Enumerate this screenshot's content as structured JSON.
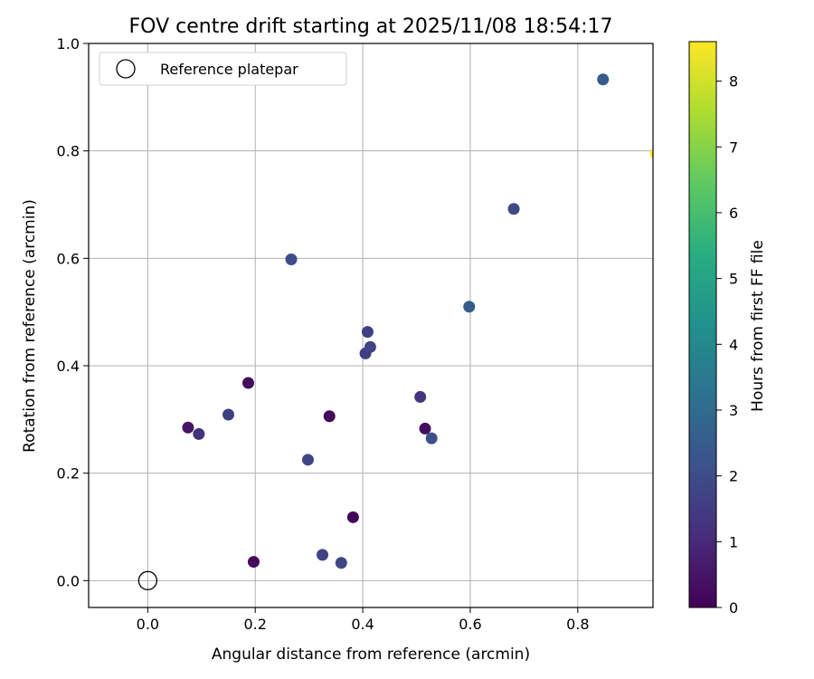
{
  "chart_data": {
    "type": "scatter",
    "title": "FOV centre drift starting at 2025/11/08 18:54:17",
    "xlabel": "Angular distance from reference (arcmin)",
    "ylabel": "Rotation from reference (arcmin)",
    "xlim": [
      -0.11,
      0.94
    ],
    "ylim": [
      -0.05,
      1.0
    ],
    "xticks": [
      0.0,
      0.2,
      0.4,
      0.6,
      0.8
    ],
    "xtick_labels": [
      "0.0",
      "0.2",
      "0.4",
      "0.6",
      "0.8"
    ],
    "yticks": [
      0.0,
      0.2,
      0.4,
      0.6,
      0.8,
      1.0
    ],
    "ytick_labels": [
      "0.0",
      "0.2",
      "0.4",
      "0.6",
      "0.8",
      "1.0"
    ],
    "grid": true,
    "legend": {
      "label": "Reference platepar",
      "location": "upper-left"
    },
    "reference_point": {
      "x": 0.0,
      "y": 0.0
    },
    "points": [
      {
        "x": 0.075,
        "y": 0.285,
        "hours": 0.5
      },
      {
        "x": 0.095,
        "y": 0.273,
        "hours": 1.2
      },
      {
        "x": 0.15,
        "y": 0.309,
        "hours": 1.6
      },
      {
        "x": 0.187,
        "y": 0.368,
        "hours": 0.3
      },
      {
        "x": 0.197,
        "y": 0.035,
        "hours": 0.2
      },
      {
        "x": 0.267,
        "y": 0.598,
        "hours": 2.0
      },
      {
        "x": 0.298,
        "y": 0.225,
        "hours": 1.8
      },
      {
        "x": 0.325,
        "y": 0.048,
        "hours": 1.7
      },
      {
        "x": 0.338,
        "y": 0.306,
        "hours": 0.2
      },
      {
        "x": 0.36,
        "y": 0.033,
        "hours": 1.8
      },
      {
        "x": 0.382,
        "y": 0.118,
        "hours": 0.1
      },
      {
        "x": 0.405,
        "y": 0.423,
        "hours": 1.6
      },
      {
        "x": 0.409,
        "y": 0.463,
        "hours": 1.6
      },
      {
        "x": 0.414,
        "y": 0.435,
        "hours": 1.7
      },
      {
        "x": 0.507,
        "y": 0.342,
        "hours": 1.3
      },
      {
        "x": 0.516,
        "y": 0.283,
        "hours": 0.3
      },
      {
        "x": 0.528,
        "y": 0.265,
        "hours": 2.1
      },
      {
        "x": 0.598,
        "y": 0.51,
        "hours": 2.5
      },
      {
        "x": 0.681,
        "y": 0.692,
        "hours": 1.9
      },
      {
        "x": 0.847,
        "y": 0.933,
        "hours": 2.5
      },
      {
        "x": 0.945,
        "y": 0.795,
        "hours": 8.6
      }
    ],
    "colorbar": {
      "label": "Hours from first FF file",
      "range": [
        0,
        8.6
      ],
      "colormap": "viridis",
      "ticks": [
        0,
        1,
        2,
        3,
        4,
        5,
        6,
        7,
        8
      ],
      "tick_labels": [
        "0",
        "1",
        "2",
        "3",
        "4",
        "5",
        "6",
        "7",
        "8"
      ]
    }
  }
}
